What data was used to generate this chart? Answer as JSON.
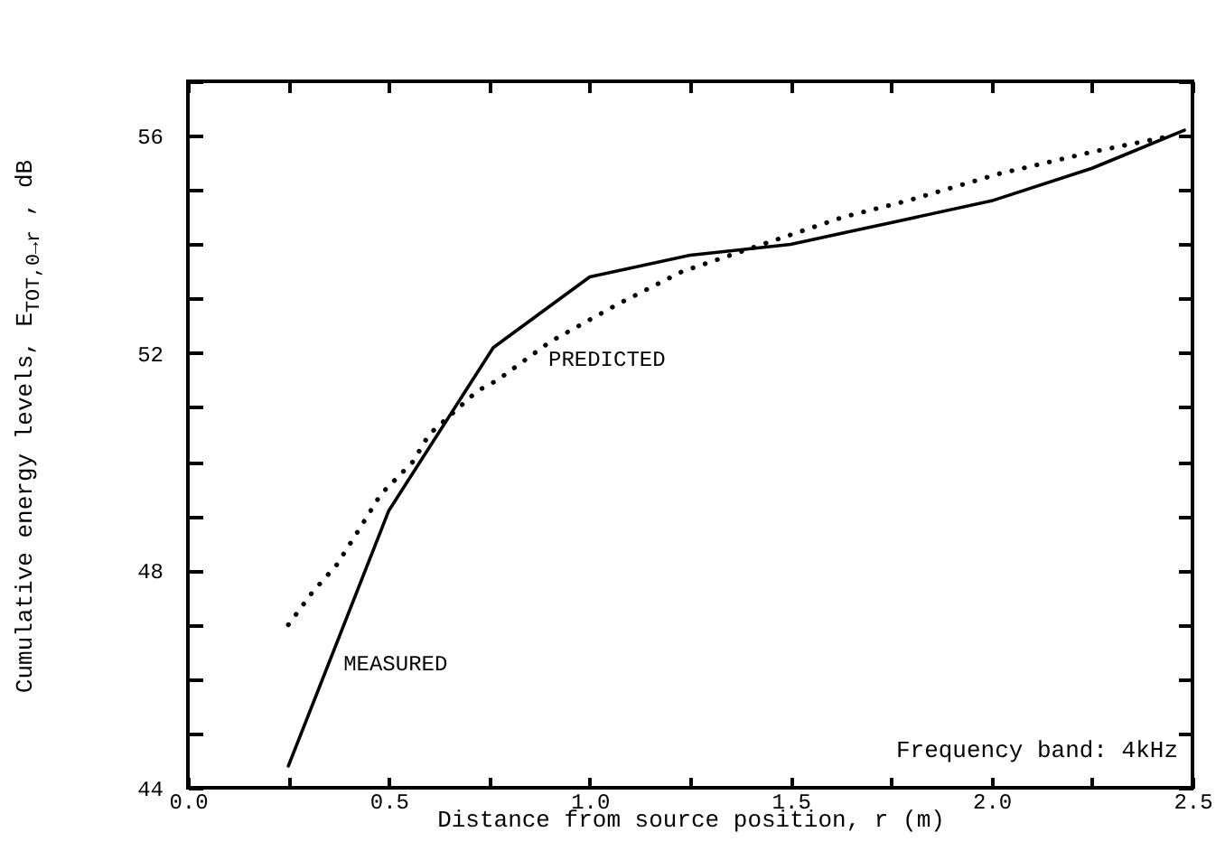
{
  "chart_data": {
    "type": "line",
    "xlabel": "Distance from source position, r (m)",
    "ylabel": "Cumulative energy levels, E$_{TOT,0→r}$ , dB",
    "xlim": [
      0,
      2.5
    ],
    "ylim": [
      44,
      57
    ],
    "xticks": [
      {
        "value": 0,
        "label": "0.0"
      },
      {
        "value": 0.25,
        "label": null
      },
      {
        "value": 0.5,
        "label": "0.5"
      },
      {
        "value": 0.75,
        "label": null
      },
      {
        "value": 1,
        "label": "1.0"
      },
      {
        "value": 1.25,
        "label": null
      },
      {
        "value": 1.5,
        "label": "1.5"
      },
      {
        "value": 1.75,
        "label": null
      },
      {
        "value": 2,
        "label": "2.0"
      },
      {
        "value": 2.25,
        "label": null
      },
      {
        "value": 2.5,
        "label": "2.5"
      }
    ],
    "yticks": [
      44,
      {
        "value": 45,
        "label": null
      },
      {
        "value": 46,
        "label": null
      },
      {
        "value": 47,
        "label": null
      },
      48,
      {
        "value": 49,
        "label": null
      },
      {
        "value": 50,
        "label": null
      },
      {
        "value": 51,
        "label": null
      },
      52,
      {
        "value": 53,
        "label": null
      },
      {
        "value": 54,
        "label": null
      },
      {
        "value": 55,
        "label": null
      },
      56,
      {
        "value": 57,
        "label": null
      }
    ],
    "grid": false,
    "marker": "none",
    "series": [
      {
        "color": "#000000",
        "line_style": "solid",
        "x": [
          0.25,
          0.5,
          0.76,
          1.0,
          1.25,
          1.5,
          1.75,
          2.0,
          2.25,
          2.48
        ],
        "values": [
          44.4,
          49.1,
          52.1,
          53.4,
          53.8,
          54.0,
          54.4,
          54.8,
          55.4,
          56.1
        ]
      },
      {
        "color": "#000000",
        "line_style": "dotted",
        "x": [
          0.25,
          0.31,
          0.37,
          0.43,
          0.48,
          0.56,
          0.6,
          0.72,
          0.77,
          0.9,
          1.07,
          1.23,
          1.43,
          1.63,
          1.79,
          2.02,
          2.25,
          2.45
        ],
        "values": [
          47.0,
          47.6,
          48.1,
          48.8,
          49.4,
          50.0,
          50.5,
          51.3,
          51.5,
          52.2,
          52.9,
          53.5,
          54.0,
          54.5,
          54.8,
          55.3,
          55.7,
          56.0
        ]
      }
    ],
    "annotations": [
      {
        "text": "MEASURED",
        "x": 0.36,
        "y": 46.3
      },
      {
        "text": "PREDICTED",
        "x": 0.87,
        "y": 51.9
      },
      "Frequency band: 4kHz"
    ]
  }
}
